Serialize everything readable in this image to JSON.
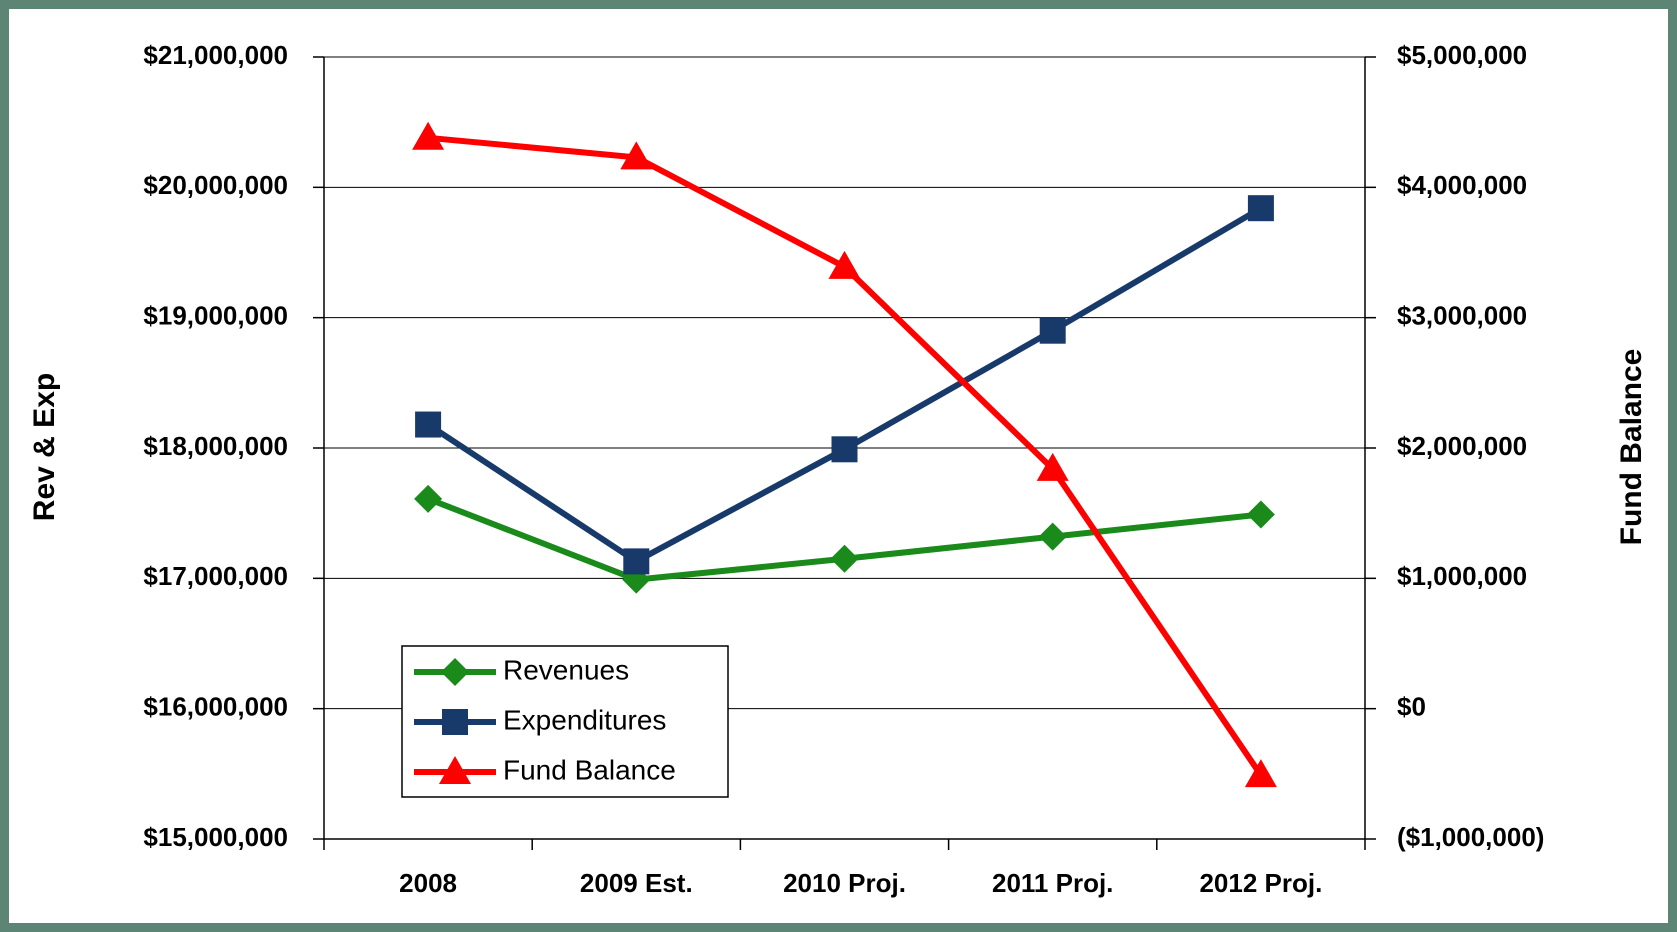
{
  "chart_data": {
    "type": "line",
    "categories": [
      "2008",
      "2009 Est.",
      "2010 Proj.",
      "2011 Proj.",
      "2012 Proj."
    ],
    "ylabel": "Rev & Exp",
    "y2label": "Fund Balance",
    "ylim": [
      15000000,
      21000000
    ],
    "yticks": [
      {
        "value": 15000000,
        "label": "$15,000,000"
      },
      {
        "value": 16000000,
        "label": "$16,000,000"
      },
      {
        "value": 17000000,
        "label": "$17,000,000"
      },
      {
        "value": 18000000,
        "label": "$18,000,000"
      },
      {
        "value": 19000000,
        "label": "$19,000,000"
      },
      {
        "value": 20000000,
        "label": "$20,000,000"
      },
      {
        "value": 21000000,
        "label": "$21,000,000"
      }
    ],
    "y2lim": [
      -1000000,
      5000000
    ],
    "y2ticks": [
      {
        "value": -1000000,
        "label": "($1,000,000)"
      },
      {
        "value": 0,
        "label": "$0"
      },
      {
        "value": 1000000,
        "label": "$1,000,000"
      },
      {
        "value": 2000000,
        "label": "$2,000,000"
      },
      {
        "value": 3000000,
        "label": "$3,000,000"
      },
      {
        "value": 4000000,
        "label": "$4,000,000"
      },
      {
        "value": 5000000,
        "label": "$5,000,000"
      }
    ],
    "grid": true,
    "legend": "lower left",
    "series": [
      {
        "name": "Revenues",
        "color": "#1a8a1a",
        "marker": "diamond",
        "values": [
          17610000,
          16990000,
          17150000,
          17320000,
          17490000
        ]
      },
      {
        "name": "Expenditures",
        "color": "#173a6b",
        "marker": "square",
        "values": [
          18180000,
          17130000,
          17990000,
          18900000,
          19840000
        ]
      },
      {
        "name": "Fund Balance",
        "color": "#ff0000",
        "marker": "triangle",
        "axis": "y2",
        "values": [
          4380000,
          4230000,
          3390000,
          1840000,
          -510000
        ]
      }
    ]
  }
}
